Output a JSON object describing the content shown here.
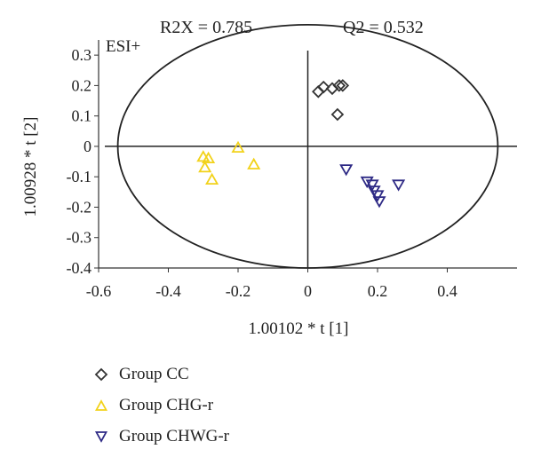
{
  "chart_data": {
    "type": "scatter",
    "title_left": "R2X = 0.785",
    "title_right": "Q2 = 0.532",
    "mode_label": "ESI+",
    "xlabel": "1.00102 * t [1]",
    "ylabel": "1.00928 * t [2]",
    "xlim": [
      -0.6,
      0.6
    ],
    "ylim": [
      -0.4,
      0.35
    ],
    "xticks": [
      -0.6,
      -0.4,
      -0.2,
      0,
      0.2,
      0.4
    ],
    "xtick_labels": [
      "-0.6",
      "-0.4",
      "-0.2",
      "0",
      "0.2",
      "0.4"
    ],
    "yticks": [
      0.3,
      0.2,
      0.1,
      0,
      -0.1,
      -0.2,
      -0.3,
      -0.4
    ],
    "ytick_labels": [
      "0.3",
      "0.2",
      "0.1",
      "0",
      "-0.1",
      "-0.2",
      "-0.3",
      "-0.4"
    ],
    "ellipse": {
      "cx": 0,
      "cy": 0,
      "rx": 0.545,
      "ry": 0.4
    },
    "grid": false,
    "legend_position": "bottom-left",
    "series": [
      {
        "name": "Group CC",
        "marker": "diamond",
        "color": "#333333",
        "points": [
          [
            0.03,
            0.18
          ],
          [
            0.045,
            0.195
          ],
          [
            0.07,
            0.19
          ],
          [
            0.09,
            0.2
          ],
          [
            0.1,
            0.2
          ],
          [
            0.085,
            0.105
          ]
        ]
      },
      {
        "name": "Group CHG-r",
        "marker": "triangle-up",
        "color": "#f2d21a",
        "points": [
          [
            -0.2,
            -0.005
          ],
          [
            -0.3,
            -0.035
          ],
          [
            -0.285,
            -0.04
          ],
          [
            -0.295,
            -0.07
          ],
          [
            -0.275,
            -0.11
          ],
          [
            -0.155,
            -0.06
          ]
        ]
      },
      {
        "name": "Group CHWG-r",
        "marker": "triangle-down",
        "color": "#2e2a85",
        "points": [
          [
            0.11,
            -0.075
          ],
          [
            0.17,
            -0.115
          ],
          [
            0.185,
            -0.125
          ],
          [
            0.19,
            -0.145
          ],
          [
            0.2,
            -0.16
          ],
          [
            0.205,
            -0.18
          ],
          [
            0.26,
            -0.125
          ]
        ]
      }
    ]
  }
}
